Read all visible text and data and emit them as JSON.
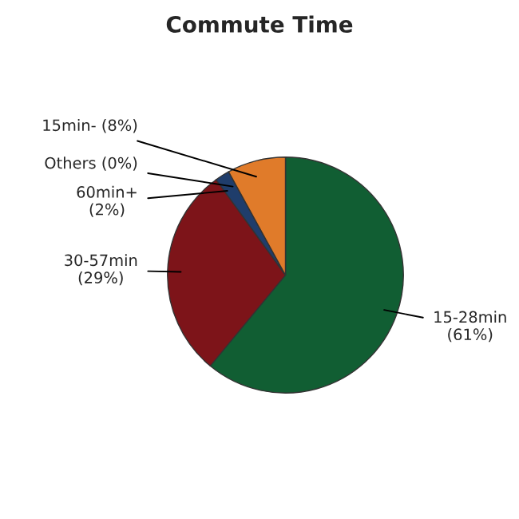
{
  "chart_data": {
    "type": "pie",
    "title": "Commute Time",
    "categories": [
      "15-28min\n(61%)",
      "30-57min\n(29%)",
      "60min+\n(2%)",
      "Others (0%)",
      "15min- (8%)"
    ],
    "values": [
      61,
      29,
      2,
      0,
      8
    ],
    "colors": [
      "#115e33",
      "#7d1419",
      "#1f3d6b",
      "#4a6fa5",
      "#e07b2a"
    ],
    "legend": false
  }
}
